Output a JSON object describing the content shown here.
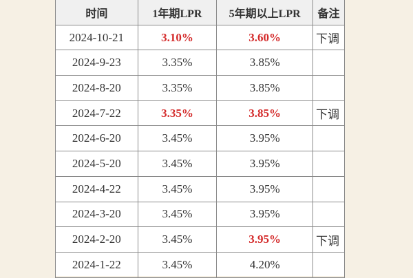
{
  "table": {
    "header": [
      "时间",
      "1年期LPR",
      "5年期以上LPR",
      "备注"
    ],
    "rows": [
      {
        "date": "2024-10-21",
        "lpr1": "3.10%",
        "lpr5": "3.60%",
        "note": "下调",
        "highlight1": true,
        "highlight5": true
      },
      {
        "date": "2024-9-23",
        "lpr1": "3.35%",
        "lpr5": "3.85%",
        "highlight1": false,
        "highlight5": false
      },
      {
        "date": "2024-8-20",
        "lpr1": "3.35%",
        "lpr5": "3.85%",
        "highlight1": false,
        "highlight5": false
      },
      {
        "date": "2024-7-22",
        "lpr1": "3.35%",
        "lpr5": "3.85%",
        "note": "下调",
        "highlight1": true,
        "highlight5": true
      },
      {
        "date": "2024-6-20",
        "lpr1": "3.45%",
        "lpr5": "3.95%",
        "highlight1": false,
        "highlight5": false
      },
      {
        "date": "2024-5-20",
        "lpr1": "3.45%",
        "lpr5": "3.95%",
        "highlight1": false,
        "highlight5": false
      },
      {
        "date": "2024-4-22",
        "lpr1": "3.45%",
        "lpr5": "3.95%",
        "highlight1": false,
        "highlight5": false
      },
      {
        "date": "2024-3-20",
        "lpr1": "3.45%",
        "lpr5": "3.95%",
        "highlight1": false,
        "highlight5": false
      },
      {
        "date": "2024-2-20",
        "lpr1": "3.45%",
        "lpr5": "3.95%",
        "note": "下调",
        "highlight1": false,
        "highlight5": true
      },
      {
        "date": "2024-1-22",
        "lpr1": "3.45%",
        "lpr5": "4.20%",
        "highlight1": false,
        "highlight5": false
      }
    ],
    "highlight_color": "#d42a2a"
  }
}
